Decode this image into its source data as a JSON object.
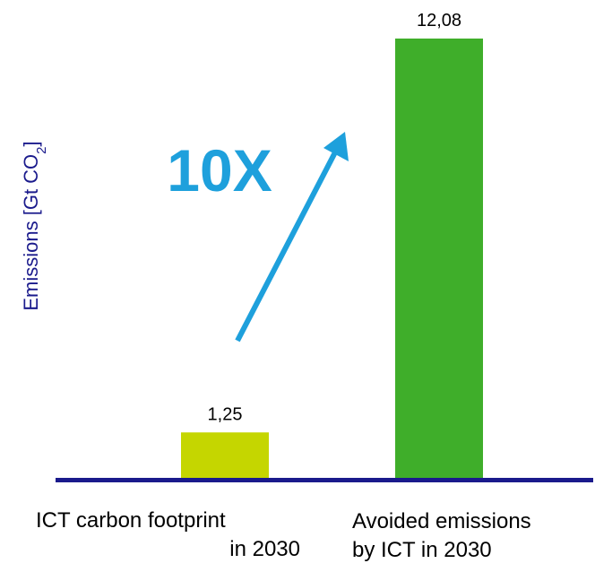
{
  "chart_data": {
    "type": "bar",
    "categories": [
      [
        "ICT carbon footprint",
        "in 2030"
      ],
      [
        "Avoided emissions",
        "by ICT in 2030"
      ]
    ],
    "values": [
      1.25,
      12.08
    ],
    "value_labels": [
      "1,25",
      "12,08"
    ],
    "bar_colors": [
      "#c5d600",
      "#3fae2a"
    ],
    "ylabel": {
      "main": "Emissions [Gt CO",
      "sub": "2",
      "close": "]"
    },
    "ylabel_color": "#1a1a8c",
    "axis_color": "#1a1a8c",
    "annotation": {
      "text": "10X",
      "color": "#1ea0dc",
      "arrow": "up-right"
    },
    "ylim": [
      0,
      12.08
    ],
    "grid": false,
    "legend": "none"
  }
}
